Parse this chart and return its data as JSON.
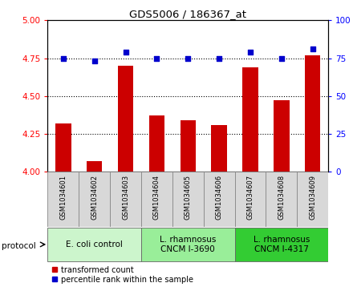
{
  "title": "GDS5006 / 186367_at",
  "samples": [
    "GSM1034601",
    "GSM1034602",
    "GSM1034603",
    "GSM1034604",
    "GSM1034605",
    "GSM1034606",
    "GSM1034607",
    "GSM1034608",
    "GSM1034609"
  ],
  "red_values": [
    4.32,
    4.07,
    4.7,
    4.37,
    4.34,
    4.31,
    4.69,
    4.47,
    4.77
  ],
  "blue_values": [
    75,
    73,
    79,
    75,
    75,
    75,
    79,
    75,
    81
  ],
  "ylim_left": [
    4.0,
    5.0
  ],
  "ylim_right": [
    0,
    100
  ],
  "yticks_left": [
    4.0,
    4.25,
    4.5,
    4.75,
    5.0
  ],
  "yticks_right": [
    0,
    25,
    50,
    75,
    100
  ],
  "bar_color": "#cc0000",
  "dot_color": "#0000cc",
  "protocol_groups": [
    {
      "label": "E. coli control",
      "start": 0,
      "end": 3,
      "color": "#ccf5cc"
    },
    {
      "label": "L. rhamnosus\nCNCM I-3690",
      "start": 3,
      "end": 6,
      "color": "#aaeea a"
    },
    {
      "label": "L. rhamnosus\nCNCM I-4317",
      "start": 6,
      "end": 9,
      "color": "#44cc44"
    }
  ],
  "legend_red": "transformed count",
  "legend_blue": "percentile rank within the sample",
  "protocol_label": "protocol",
  "bar_width": 0.5,
  "base_value": 4.0,
  "sample_box_color": "#d8d8d8",
  "group_color_1": "#ccf5cc",
  "group_color_2": "#99ee99",
  "group_color_3": "#33cc33"
}
